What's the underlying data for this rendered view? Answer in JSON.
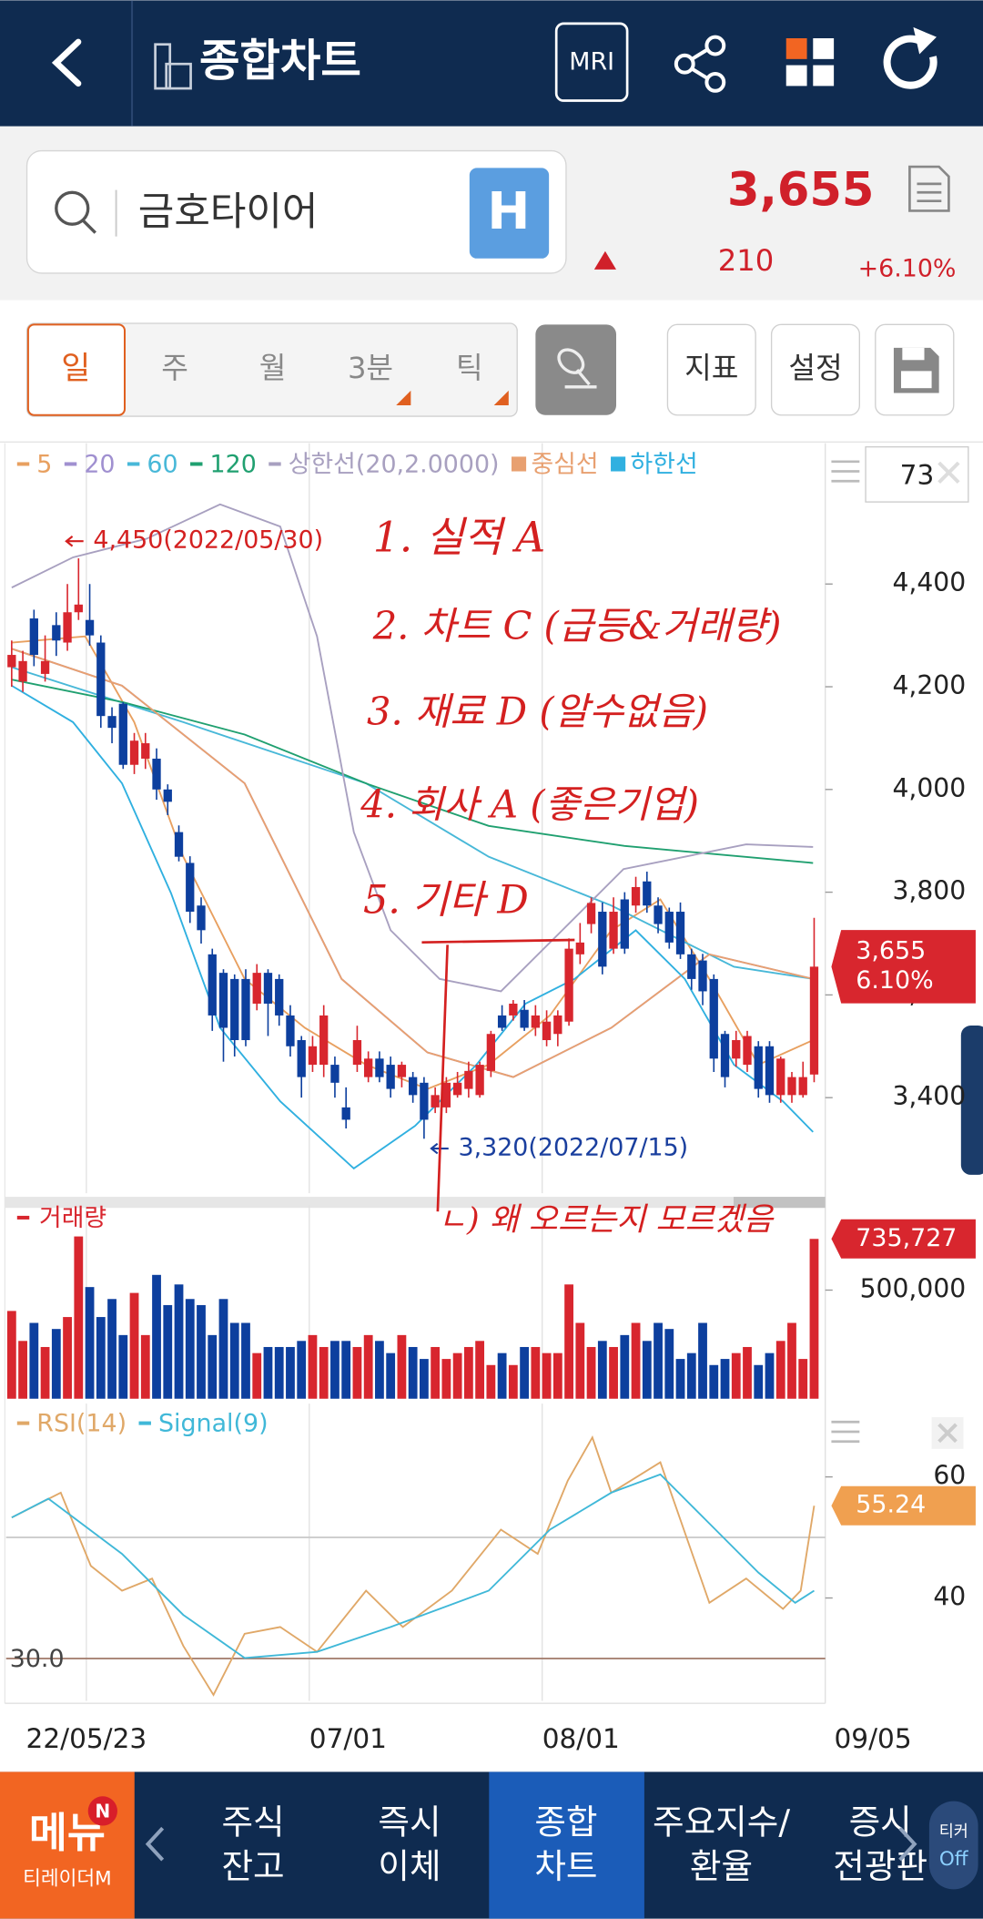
{
  "header": {
    "title": "종합차트",
    "mri": "MRI"
  },
  "search": {
    "name": "금호타이어",
    "badge": "H"
  },
  "quote": {
    "price": "3,655",
    "change": "210",
    "change_pct": "+6.10%"
  },
  "tabs": [
    "일",
    "주",
    "월",
    "3분",
    "틱"
  ],
  "buttons": [
    "지표",
    "설정"
  ],
  "period_input": "73",
  "annotations": [
    "1. 실적 A",
    "2. 차트 C (급등&거래량)",
    "3. 재료 D (알수없음)",
    "4. 회사 A (좋은기업)",
    "5. 기타 D",
    "ㄴ) 왜 오르는지 모르겠음"
  ],
  "nav": {
    "menu": "메뉴",
    "brand": "티레이더M",
    "items": [
      [
        "주식",
        "잔고"
      ],
      [
        "즉시",
        "이체"
      ],
      [
        "종합",
        "차트"
      ],
      [
        "주요지수/",
        "환율"
      ],
      [
        "증시",
        "전광판"
      ]
    ],
    "ticker": [
      "티커",
      "Off"
    ]
  },
  "chart_data": [
    {
      "type": "candlestick",
      "up_color": "#d8262e",
      "down_color": "#0d3f9e",
      "open": [
        4238,
        4210,
        4333,
        4225,
        4320,
        4286,
        4345,
        4330,
        4286,
        4143,
        4167,
        4048,
        4060,
        4060,
        4000,
        3917,
        3857,
        3774,
        3679,
        3643,
        3631,
        3631,
        3583,
        3643,
        3631,
        3560,
        3512,
        3464,
        3464,
        3464,
        3381,
        3464,
        3440,
        3476,
        3464,
        3440,
        3440,
        3429,
        3381,
        3381,
        3405,
        3417,
        3405,
        3452,
        3560,
        3560,
        3571,
        3536,
        3512,
        3524,
        3548,
        3679,
        3738,
        3762,
        3690,
        3786,
        3774,
        3821,
        3774,
        3762,
        3762,
        3679,
        3667,
        3631,
        3524,
        3476,
        3464,
        3500,
        3500,
        3405,
        3405,
        3405,
        3445
      ],
      "high": [
        4290,
        4270,
        4350,
        4300,
        4345,
        4400,
        4450,
        4400,
        4300,
        4160,
        4170,
        4110,
        4110,
        4080,
        4010,
        3930,
        3870,
        3790,
        3690,
        3650,
        3640,
        3650,
        3660,
        3650,
        3640,
        3580,
        3520,
        3520,
        3580,
        3480,
        3420,
        3540,
        3490,
        3490,
        3480,
        3470,
        3450,
        3440,
        3420,
        3440,
        3450,
        3470,
        3470,
        3530,
        3580,
        3590,
        3590,
        3580,
        3570,
        3570,
        3710,
        3740,
        3790,
        3780,
        3790,
        3800,
        3830,
        3840,
        3790,
        3770,
        3780,
        3690,
        3680,
        3640,
        3530,
        3530,
        3530,
        3510,
        3510,
        3480,
        3450,
        3470,
        3750
      ],
      "low": [
        4200,
        4190,
        4240,
        4210,
        4260,
        4270,
        4330,
        4280,
        4120,
        4090,
        4040,
        4030,
        4040,
        3980,
        3950,
        3860,
        3740,
        3700,
        3530,
        3470,
        3480,
        3500,
        3570,
        3520,
        3540,
        3480,
        3400,
        3450,
        3440,
        3400,
        3340,
        3450,
        3430,
        3430,
        3400,
        3420,
        3390,
        3320,
        3370,
        3370,
        3400,
        3400,
        3400,
        3440,
        3530,
        3550,
        3530,
        3520,
        3500,
        3500,
        3540,
        3660,
        3720,
        3640,
        3680,
        3680,
        3760,
        3760,
        3720,
        3690,
        3670,
        3610,
        3580,
        3450,
        3420,
        3460,
        3450,
        3400,
        3390,
        3390,
        3390,
        3400,
        3430
      ],
      "close": [
        4262,
        4250,
        4262,
        4250,
        4290,
        4345,
        4360,
        4300,
        4143,
        4120,
        4048,
        4095,
        4090,
        4000,
        3976,
        3869,
        3762,
        3726,
        3560,
        3536,
        3512,
        3512,
        3643,
        3583,
        3560,
        3500,
        3440,
        3500,
        3560,
        3429,
        3357,
        3512,
        3476,
        3440,
        3417,
        3464,
        3405,
        3357,
        3405,
        3429,
        3429,
        3452,
        3464,
        3524,
        3536,
        3583,
        3536,
        3560,
        3548,
        3560,
        3690,
        3702,
        3779,
        3655,
        3762,
        3690,
        3810,
        3774,
        3738,
        3702,
        3679,
        3631,
        3607,
        3476,
        3440,
        3512,
        3520,
        3417,
        3405,
        3476,
        3440,
        3440,
        3655
      ],
      "series": [
        {
          "name": "5",
          "color": "#e8a060",
          "x": [
            0,
            6.6,
            11,
            15.4,
            20.9,
            26.3,
            31.8,
            37.3,
            42.8,
            48.3,
            53.8,
            58.2,
            62.6,
            67,
            71.9
          ],
          "values": [
            4286,
            4298,
            4131,
            3869,
            3631,
            3536,
            3464,
            3417,
            3464,
            3560,
            3726,
            3786,
            3631,
            3464,
            3512
          ]
        },
        {
          "name": "20",
          "color": "#a090d0",
          "x": [
            0,
            9.9,
            20.9,
            29.6,
            37.3,
            45,
            53.8,
            62.6,
            71.9
          ],
          "values": [
            4274,
            4202,
            4012,
            3631,
            3488,
            3440,
            3536,
            3679,
            3631
          ]
        },
        {
          "name": "60",
          "color": "#48b8d8",
          "x": [
            0,
            15.4,
            31.8,
            42.8,
            53.8,
            64.8,
            71.9
          ],
          "values": [
            4238,
            4131,
            4012,
            3869,
            3774,
            3655,
            3631
          ]
        },
        {
          "name": "120",
          "color": "#20a070",
          "x": [
            0,
            10,
            20.9,
            32,
            42.8,
            55,
            71.9
          ],
          "values": [
            4214,
            4170,
            4107,
            4010,
            3929,
            3890,
            3857
          ]
        },
        {
          "name": "상한선(20,2.0000)",
          "color": "#a8a0c0",
          "x": [
            0,
            5.5,
            12.1,
            18.7,
            24.1,
            27.4,
            30.7,
            34,
            38.4,
            43.9,
            49.4,
            54.9,
            60.4,
            65.9,
            71.9
          ],
          "values": [
            4393,
            4452,
            4488,
            4555,
            4512,
            4298,
            3917,
            3726,
            3631,
            3607,
            3726,
            3845,
            3869,
            3893,
            3888
          ]
        },
        {
          "name": "중심선",
          "color": "#e8a070",
          "marker": "square",
          "x": [
            0,
            9.9,
            20.9,
            29.6,
            37.3,
            45,
            53.8,
            62.6,
            71.9
          ],
          "values": [
            4274,
            4202,
            4012,
            3631,
            3488,
            3440,
            3536,
            3679,
            3631
          ]
        },
        {
          "name": "하한선",
          "color": "#30b0e0",
          "marker": "square",
          "x": [
            0,
            5.5,
            9.9,
            14.3,
            18.7,
            24.1,
            30.7,
            36.2,
            41.7,
            46.1,
            50.5,
            56,
            60.4,
            64.8,
            69.2,
            71.9
          ],
          "values": [
            4202,
            4131,
            4012,
            3798,
            3536,
            3393,
            3262,
            3345,
            3464,
            3583,
            3631,
            3726,
            3631,
            3464,
            3393,
            3333
          ]
        }
      ],
      "ylim": [
        3214,
        4667
      ],
      "yticks": [
        {
          "value": 3400,
          "label": "3,400"
        },
        {
          "value": 3600,
          "label": "3,600"
        },
        {
          "value": 3800,
          "label": "3,800"
        },
        {
          "value": 4000,
          "label": "4,000"
        },
        {
          "value": 4200,
          "label": "4,200"
        },
        {
          "value": 4400,
          "label": "4,400"
        }
      ],
      "markers": [
        {
          "text": "4,450(2022/05/30)",
          "value": 4450,
          "color": "#d42020"
        },
        {
          "text": "3,320(2022/07/15)",
          "value": 3320,
          "color": "#1a3f9e"
        }
      ],
      "last_labels": [
        "3,655",
        "6.10%"
      ],
      "last_color": "#d8262e"
    },
    {
      "type": "bar",
      "name": "거래량",
      "color": "#d8262e",
      "values": [
        404000,
        266000,
        349000,
        238000,
        321000,
        376000,
        747000,
        514000,
        376000,
        459000,
        293000,
        487000,
        293000,
        570000,
        431000,
        526000,
        459000,
        431000,
        293000,
        459000,
        349000,
        349000,
        210000,
        238000,
        238000,
        238000,
        266000,
        293000,
        238000,
        266000,
        266000,
        238000,
        293000,
        266000,
        210000,
        293000,
        238000,
        183000,
        238000,
        183000,
        210000,
        238000,
        266000,
        155000,
        210000,
        155000,
        238000,
        238000,
        210000,
        210000,
        526000,
        349000,
        238000,
        266000,
        238000,
        293000,
        349000,
        266000,
        349000,
        321000,
        183000,
        210000,
        349000,
        155000,
        183000,
        210000,
        238000,
        155000,
        210000,
        266000,
        349000,
        183000,
        735727
      ],
      "ylim": [
        0,
        873000
      ],
      "yticks": [
        {
          "value": 500000,
          "label": "500,000"
        }
      ],
      "last_label": "735,727"
    },
    {
      "type": "line",
      "series": [
        {
          "name": "RSI(14)",
          "color": "#e0a868",
          "x": [
            0,
            4.4,
            7.1,
            9.9,
            12.6,
            15.4,
            18.1,
            20.9,
            24.1,
            27.4,
            31.8,
            35.1,
            39.5,
            43.9,
            47.2,
            49.9,
            52.1,
            53.8,
            58.2,
            62.6,
            65.9,
            69.2,
            70.8,
            72
          ],
          "values": [
            53.3,
            57.4,
            45.3,
            41.2,
            43.2,
            32.1,
            24.0,
            34.1,
            35.2,
            31.1,
            41.2,
            35.2,
            41.2,
            51.3,
            47.3,
            59.4,
            66.5,
            57.4,
            62.4,
            39.2,
            43.2,
            38.2,
            41.2,
            55.24
          ]
        },
        {
          "name": "Signal(9)",
          "color": "#40b8d8",
          "x": [
            0,
            3.3,
            9.9,
            15.4,
            20.9,
            27.4,
            34,
            42.8,
            48.3,
            53.8,
            58.2,
            62.6,
            67,
            70.3,
            72
          ],
          "values": [
            53.3,
            56.4,
            47.3,
            37.2,
            30.1,
            31.1,
            35.2,
            41.2,
            51.3,
            57.4,
            60.4,
            52.3,
            44.2,
            39.2,
            41.2
          ]
        }
      ],
      "ylim": [
        23,
        71.5
      ],
      "yticks": [
        40,
        60
      ],
      "levels": [
        50,
        {
          "value": 30,
          "label": "30.0"
        }
      ],
      "last_label": "55.24",
      "last_color": "#f0a050",
      "xlim": [
        -0.5,
        73
      ],
      "xticks": [
        {
          "value": 6.7,
          "label": "22/05/23"
        },
        {
          "value": 26.7,
          "label": "07/01"
        },
        {
          "value": 47.6,
          "label": "08/01"
        },
        {
          "value": 73.8,
          "label": "09/05"
        }
      ]
    }
  ]
}
